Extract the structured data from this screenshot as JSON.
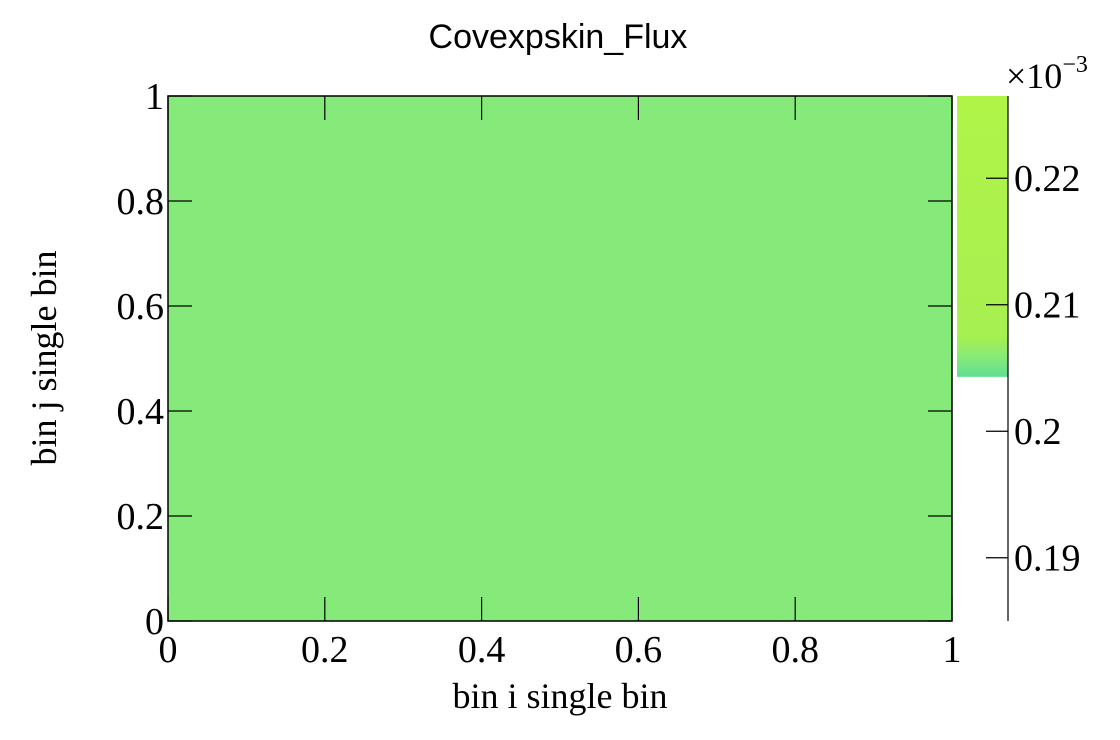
{
  "chart_data": {
    "type": "heatmap",
    "title": "Covexpskin_Flux",
    "xlabel": "bin i single bin",
    "ylabel": "bin j single bin",
    "xlim": [
      0,
      1
    ],
    "ylim": [
      0,
      1
    ],
    "x_ticks": [
      {
        "value": 0,
        "label": "0"
      },
      {
        "value": 0.2,
        "label": "0.2"
      },
      {
        "value": 0.4,
        "label": "0.4"
      },
      {
        "value": 0.6,
        "label": "0.6"
      },
      {
        "value": 0.8,
        "label": "0.8"
      },
      {
        "value": 1,
        "label": "1"
      }
    ],
    "y_ticks": [
      {
        "value": 0,
        "label": "0"
      },
      {
        "value": 0.2,
        "label": "0.2"
      },
      {
        "value": 0.4,
        "label": "0.4"
      },
      {
        "value": 0.6,
        "label": "0.6"
      },
      {
        "value": 0.8,
        "label": "0.8"
      },
      {
        "value": 1,
        "label": "1"
      }
    ],
    "cells": [
      {
        "x0": 0,
        "x1": 1,
        "y0": 0,
        "y1": 1,
        "z": 0.000207,
        "color": "#86ea7b"
      }
    ],
    "colorbar": {
      "zlim": [
        0.000185,
        0.0002265
      ],
      "filled_range": [
        0.0002043,
        0.0002265
      ],
      "scale_label": "×10",
      "scale_exponent": "−3",
      "ticks": [
        {
          "value": 0.00019,
          "label": "0.19"
        },
        {
          "value": 0.0002,
          "label": "0.2"
        },
        {
          "value": 0.00021,
          "label": "0.21"
        },
        {
          "value": 0.00022,
          "label": "0.22"
        }
      ],
      "stops": [
        {
          "value": 0.0002043,
          "color": "#5fdd92"
        },
        {
          "value": 0.0002058,
          "color": "#86ea7b"
        },
        {
          "value": 0.0002075,
          "color": "#a6f050"
        },
        {
          "value": 0.0002265,
          "color": "#b0f448"
        }
      ]
    }
  }
}
